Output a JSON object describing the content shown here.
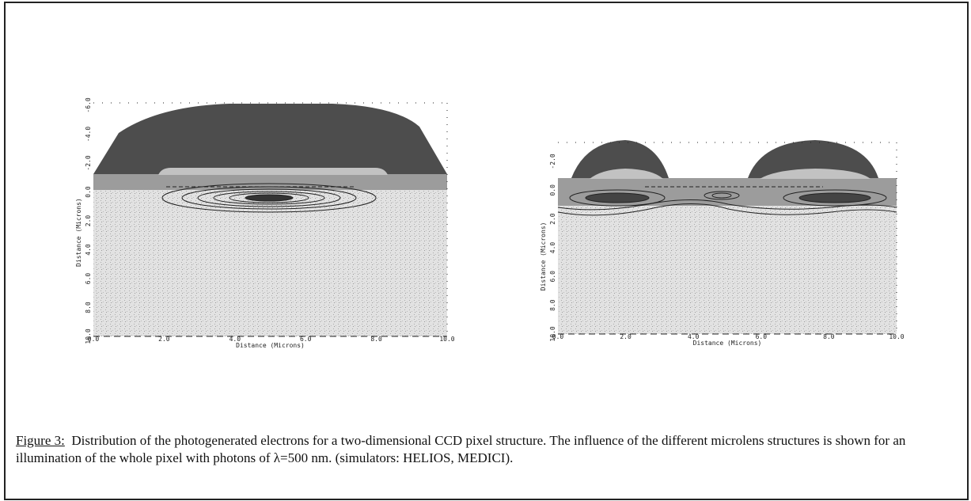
{
  "figures": [
    {
      "x_label": "Distance (Microns)",
      "y_label": "Distance (Microns)",
      "x_ticks": [
        "0.0",
        "2.0",
        "4.0",
        "6.0",
        "8.0",
        "10.0"
      ],
      "y_ticks": [
        "-6.0",
        "-4.0",
        "-2.0",
        "0.0",
        "2.0",
        "4.0",
        "6.0",
        "8.0",
        "10.0"
      ]
    },
    {
      "x_label": "Distance (Microns)",
      "y_label": "Distance (Microns)",
      "x_ticks": [
        "0.0",
        "2.0",
        "4.0",
        "6.0",
        "8.0",
        "10.0"
      ],
      "y_ticks": [
        "-2.0",
        "0.0",
        "2.0",
        "4.0",
        "6.0",
        "8.0",
        "10.0"
      ]
    }
  ],
  "caption": {
    "label": "Figure 3:",
    "text": "Distribution of the photogenerated electrons for a two-dimensional CCD pixel structure. The influence of the different microlens structures is shown for an illumination of the whole pixel with photons of λ=500 nm. (simulators: HELIOS, MEDICI)."
  }
}
